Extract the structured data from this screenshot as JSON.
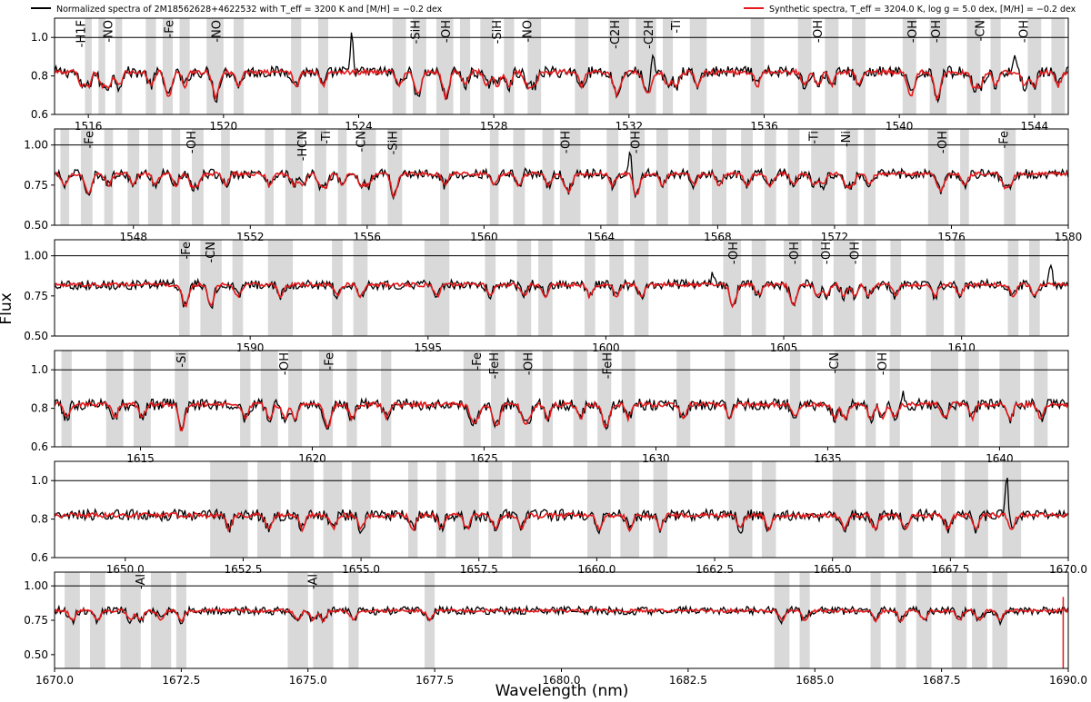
{
  "legend": {
    "observed": "Normalized spectra of 2M18562628+4622532 with T_eff = 3200 K and [M/H] = −0.2 dex",
    "synthetic": "Synthetic spectra, T_eff = 3204.0 K, log g = 5.0 dex, [M/H] = −0.2 dex"
  },
  "colors": {
    "observed": "#000000",
    "synthetic": "#e41a1c",
    "mask": "#d9d9d9"
  },
  "chart_data": {
    "type": "line",
    "xlabel": "Wavelength (nm)",
    "ylabel": "Flux",
    "series": [
      {
        "name": "Normalized spectra of 2M18562628+4622532 with T_eff = 3200 K and [M/H] = −0.2 dex",
        "color": "#000000",
        "baseline": 0.82
      },
      {
        "name": "Synthetic spectra, T_eff = 3204.0 K, log g = 5.0 dex, [M/H] = −0.2 dex",
        "color": "#e41a1c",
        "baseline": 0.82
      }
    ],
    "panels": [
      {
        "xlim": [
          1515,
          1545
        ],
        "ylim": [
          0.6,
          1.1
        ],
        "xticks": [
          1516,
          1520,
          1524,
          1528,
          1532,
          1536,
          1540,
          1544
        ],
        "xtick_labels": [
          "1516",
          "1520",
          "1524",
          "1528",
          "1532",
          "1536",
          "1540",
          "1544"
        ],
        "yticks": [
          0.6,
          0.8,
          1.0
        ],
        "ytick_labels": [
          "0.6",
          "0.8",
          "1.0"
        ],
        "lines": [
          {
            "label": "-H1F",
            "x": 1515.8
          },
          {
            "label": "-NO",
            "x": 1516.6
          },
          {
            "label": "-Fe",
            "x": 1518.4
          },
          {
            "label": "-NO",
            "x": 1519.8
          },
          {
            "label": "-SiH",
            "x": 1525.7
          },
          {
            "label": "-OH",
            "x": 1526.6
          },
          {
            "label": "-SiH",
            "x": 1528.1
          },
          {
            "label": "-NO",
            "x": 1529.0
          },
          {
            "label": "-C2H",
            "x": 1531.6
          },
          {
            "label": "-C2H",
            "x": 1532.6
          },
          {
            "label": "-Ti",
            "x": 1533.4
          },
          {
            "label": "-OH",
            "x": 1537.6
          },
          {
            "label": "-OH",
            "x": 1540.4
          },
          {
            "label": "-OH",
            "x": 1541.1
          },
          {
            "label": "-CN",
            "x": 1542.4
          },
          {
            "label": "-OH",
            "x": 1543.7
          }
        ],
        "spikes": [
          {
            "x": 1523.8,
            "y": 1.01
          },
          {
            "x": 1532.7,
            "y": 0.96
          },
          {
            "x": 1543.4,
            "y": 0.92
          }
        ],
        "mask_bands": [
          [
            1515.9,
            1516.1
          ],
          [
            1516.3,
            1516.5
          ],
          [
            1516.8,
            1517.0
          ],
          [
            1517.7,
            1518.0
          ],
          [
            1518.2,
            1518.5
          ],
          [
            1518.7,
            1519.0
          ],
          [
            1519.5,
            1520.0
          ],
          [
            1520.3,
            1520.6
          ],
          [
            1522.0,
            1522.3
          ],
          [
            1522.8,
            1523.1
          ],
          [
            1525.0,
            1525.4
          ],
          [
            1525.6,
            1526.0
          ],
          [
            1526.3,
            1526.8
          ],
          [
            1527.0,
            1527.3
          ],
          [
            1527.6,
            1528.0
          ],
          [
            1528.3,
            1528.6
          ],
          [
            1529.0,
            1529.4
          ],
          [
            1530.4,
            1530.8
          ],
          [
            1531.4,
            1532.0
          ],
          [
            1532.2,
            1532.8
          ],
          [
            1533.0,
            1533.3
          ],
          [
            1533.8,
            1534.3
          ],
          [
            1535.6,
            1536.0
          ],
          [
            1537.0,
            1537.4
          ],
          [
            1537.8,
            1538.2
          ],
          [
            1538.6,
            1539.0
          ],
          [
            1540.1,
            1540.5
          ],
          [
            1540.9,
            1541.4
          ],
          [
            1542.0,
            1542.4
          ],
          [
            1542.7,
            1543.0
          ],
          [
            1543.8,
            1544.2
          ],
          [
            1544.5,
            1544.9
          ]
        ]
      },
      {
        "xlim": [
          1545.3,
          1580
        ],
        "ylim": [
          0.5,
          1.1
        ],
        "xticks": [
          1548,
          1552,
          1556,
          1560,
          1564,
          1568,
          1572,
          1576,
          1580
        ],
        "xtick_labels": [
          "1548",
          "1552",
          "1556",
          "1560",
          "1564",
          "1568",
          "1572",
          "1576",
          "1580"
        ],
        "yticks": [
          0.5,
          0.75,
          1.0
        ],
        "ytick_labels": [
          "0.50",
          "0.75",
          "1.00"
        ],
        "lines": [
          {
            "label": "-Fe",
            "x": 1546.5
          },
          {
            "label": "-OH",
            "x": 1550.0
          },
          {
            "label": "-HCN",
            "x": 1553.8
          },
          {
            "label": "-Ti",
            "x": 1554.6
          },
          {
            "label": "-CN",
            "x": 1555.8
          },
          {
            "label": "-SiH",
            "x": 1556.9
          },
          {
            "label": "-OH",
            "x": 1562.8
          },
          {
            "label": "-OH",
            "x": 1565.2
          },
          {
            "label": "-Ti",
            "x": 1571.3
          },
          {
            "label": "-Ni",
            "x": 1572.4
          },
          {
            "label": "-OH",
            "x": 1575.7
          },
          {
            "label": "-Fe",
            "x": 1577.8
          }
        ],
        "spikes": [
          {
            "x": 1565.0,
            "y": 0.95
          },
          {
            "x": 1561.4,
            "y": 0.88
          }
        ],
        "mask_bands": [
          [
            1545.5,
            1545.8
          ],
          [
            1546.2,
            1546.6
          ],
          [
            1547.0,
            1547.3
          ],
          [
            1547.8,
            1548.2
          ],
          [
            1548.5,
            1549.0
          ],
          [
            1549.3,
            1549.6
          ],
          [
            1550.0,
            1550.4
          ],
          [
            1551.0,
            1551.3
          ],
          [
            1552.5,
            1552.8
          ],
          [
            1553.2,
            1553.8
          ],
          [
            1554.2,
            1554.6
          ],
          [
            1555.0,
            1555.3
          ],
          [
            1555.8,
            1556.3
          ],
          [
            1556.7,
            1557.2
          ],
          [
            1558.5,
            1558.8
          ],
          [
            1560.2,
            1560.5
          ],
          [
            1561.0,
            1561.4
          ],
          [
            1562.0,
            1562.4
          ],
          [
            1562.6,
            1563.3
          ],
          [
            1564.2,
            1564.6
          ],
          [
            1565.0,
            1565.5
          ],
          [
            1565.9,
            1566.3
          ],
          [
            1567.0,
            1567.4
          ],
          [
            1567.8,
            1568.3
          ],
          [
            1568.8,
            1569.2
          ],
          [
            1569.6,
            1570.0
          ],
          [
            1570.4,
            1570.8
          ],
          [
            1571.2,
            1572.0
          ],
          [
            1572.4,
            1572.8
          ],
          [
            1573.0,
            1573.4
          ],
          [
            1575.2,
            1575.9
          ],
          [
            1576.3,
            1576.6
          ],
          [
            1577.8,
            1578.2
          ]
        ]
      },
      {
        "xlim": [
          1584.5,
          1613
        ],
        "ylim": [
          0.5,
          1.1
        ],
        "xticks": [
          1590,
          1595,
          1600,
          1605,
          1610
        ],
        "xtick_labels": [
          "1590",
          "1595",
          "1600",
          "1605",
          "1610"
        ],
        "yticks": [
          0.5,
          0.75,
          1.0
        ],
        "ytick_labels": [
          "0.50",
          "0.75",
          "1.00"
        ],
        "lines": [
          {
            "label": "-Fe",
            "x": 1588.2
          },
          {
            "label": "-CN",
            "x": 1588.9
          },
          {
            "label": "-OH",
            "x": 1603.6
          },
          {
            "label": "-OH",
            "x": 1605.3
          },
          {
            "label": "-OH",
            "x": 1606.2
          },
          {
            "label": "-OH",
            "x": 1607.0
          }
        ],
        "spikes": [
          {
            "x": 1603.0,
            "y": 0.9
          },
          {
            "x": 1612.5,
            "y": 0.96
          }
        ],
        "mask_bands": [
          [
            1588.0,
            1588.3
          ],
          [
            1588.6,
            1589.2
          ],
          [
            1589.5,
            1589.8
          ],
          [
            1590.5,
            1591.2
          ],
          [
            1592.3,
            1592.6
          ],
          [
            1592.9,
            1593.3
          ],
          [
            1594.9,
            1595.6
          ],
          [
            1596.6,
            1596.9
          ],
          [
            1597.5,
            1597.9
          ],
          [
            1598.1,
            1598.5
          ],
          [
            1599.4,
            1599.7
          ],
          [
            1600.1,
            1600.5
          ],
          [
            1600.8,
            1601.2
          ],
          [
            1603.3,
            1603.8
          ],
          [
            1604.1,
            1604.5
          ],
          [
            1605.0,
            1605.5
          ],
          [
            1605.8,
            1606.1
          ],
          [
            1606.4,
            1607.0
          ],
          [
            1607.2,
            1607.6
          ],
          [
            1608.0,
            1608.3
          ],
          [
            1609.0,
            1609.5
          ],
          [
            1609.8,
            1610.1
          ],
          [
            1611.3,
            1611.6
          ],
          [
            1611.9,
            1612.2
          ]
        ]
      },
      {
        "xlim": [
          1612.5,
          1642
        ],
        "ylim": [
          0.6,
          1.1
        ],
        "xticks": [
          1615,
          1620,
          1625,
          1630,
          1635,
          1640
        ],
        "xtick_labels": [
          "1615",
          "1620",
          "1625",
          "1630",
          "1635",
          "1640"
        ],
        "yticks": [
          0.6,
          0.8,
          1.0
        ],
        "ytick_labels": [
          "0.6",
          "0.8",
          "1.0"
        ],
        "lines": [
          {
            "label": "-Si",
            "x": 1616.2
          },
          {
            "label": "-OH",
            "x": 1619.2
          },
          {
            "label": "-Fe",
            "x": 1620.5
          },
          {
            "label": "-Fe",
            "x": 1624.8
          },
          {
            "label": "-FeH",
            "x": 1625.3
          },
          {
            "label": "-OH",
            "x": 1626.3
          },
          {
            "label": "-FeH",
            "x": 1628.6
          },
          {
            "label": "-CN",
            "x": 1635.2
          },
          {
            "label": "-OH",
            "x": 1636.6
          }
        ],
        "spikes": [
          {
            "x": 1637.2,
            "y": 0.88
          }
        ],
        "mask_bands": [
          [
            1612.7,
            1613.0
          ],
          [
            1614.0,
            1614.5
          ],
          [
            1614.8,
            1615.3
          ],
          [
            1616.0,
            1616.4
          ],
          [
            1617.9,
            1618.2
          ],
          [
            1618.5,
            1619.0
          ],
          [
            1619.3,
            1619.7
          ],
          [
            1620.2,
            1620.6
          ],
          [
            1621.0,
            1621.3
          ],
          [
            1622.0,
            1622.3
          ],
          [
            1624.4,
            1624.9
          ],
          [
            1625.2,
            1625.6
          ],
          [
            1625.9,
            1626.4
          ],
          [
            1626.7,
            1627.0
          ],
          [
            1627.6,
            1628.0
          ],
          [
            1628.3,
            1628.7
          ],
          [
            1629.0,
            1629.4
          ],
          [
            1630.6,
            1631.0
          ],
          [
            1632.0,
            1632.3
          ],
          [
            1633.9,
            1634.2
          ],
          [
            1635.2,
            1635.8
          ],
          [
            1636.1,
            1636.4
          ],
          [
            1636.8,
            1637.1
          ],
          [
            1638.0,
            1638.8
          ],
          [
            1639.0,
            1639.4
          ],
          [
            1640.0,
            1640.6
          ],
          [
            1641.0,
            1641.4
          ]
        ]
      },
      {
        "xlim": [
          1648.5,
          1670
        ],
        "ylim": [
          0.6,
          1.1
        ],
        "xticks": [
          1650.0,
          1652.5,
          1655.0,
          1657.5,
          1660.0,
          1662.5,
          1665.0,
          1667.5,
          1670.0
        ],
        "xtick_labels": [
          "1650.0",
          "1652.5",
          "1655.0",
          "1657.5",
          "1660.0",
          "1662.5",
          "1665.0",
          "1667.5",
          "1670.0"
        ],
        "yticks": [
          0.6,
          0.8,
          1.0
        ],
        "ytick_labels": [
          "0.6",
          "0.8",
          "1.0"
        ],
        "lines": [],
        "spikes": [
          {
            "x": 1668.7,
            "y": 1.02
          }
        ],
        "mask_bands": [
          [
            1651.8,
            1652.6
          ],
          [
            1652.8,
            1653.3
          ],
          [
            1653.5,
            1654.0
          ],
          [
            1654.2,
            1654.6
          ],
          [
            1654.8,
            1655.2
          ],
          [
            1656.0,
            1656.2
          ],
          [
            1656.6,
            1656.8
          ],
          [
            1657.0,
            1657.5
          ],
          [
            1657.7,
            1658.0
          ],
          [
            1658.2,
            1658.6
          ],
          [
            1659.8,
            1660.3
          ],
          [
            1660.5,
            1660.9
          ],
          [
            1661.2,
            1661.5
          ],
          [
            1662.8,
            1663.3
          ],
          [
            1663.5,
            1663.8
          ],
          [
            1665.0,
            1665.5
          ],
          [
            1665.7,
            1666.1
          ],
          [
            1666.4,
            1666.7
          ],
          [
            1667.3,
            1667.6
          ],
          [
            1667.8,
            1668.3
          ],
          [
            1668.6,
            1669.0
          ]
        ]
      },
      {
        "xlim": [
          1670,
          1690
        ],
        "ylim": [
          0.4,
          1.1
        ],
        "xticks": [
          1670.0,
          1672.5,
          1675.0,
          1677.5,
          1680.0,
          1682.5,
          1685.0,
          1687.5,
          1690.0
        ],
        "xtick_labels": [
          "1670.0",
          "1672.5",
          "1675.0",
          "1677.5",
          "1680.0",
          "1682.5",
          "1685.0",
          "1687.5",
          "1690.0"
        ],
        "yticks": [
          0.5,
          0.75,
          1.0
        ],
        "ytick_labels": [
          "0.50",
          "0.75",
          "1.00"
        ],
        "lines": [
          {
            "label": "-Al",
            "x": 1671.7
          },
          {
            "label": "-Al",
            "x": 1675.1
          }
        ],
        "spikes": [],
        "mask_bands": [
          [
            1670.2,
            1670.5
          ],
          [
            1670.7,
            1671.0
          ],
          [
            1671.3,
            1671.7
          ],
          [
            1671.9,
            1672.3
          ],
          [
            1672.4,
            1672.6
          ],
          [
            1674.6,
            1675.0
          ],
          [
            1675.1,
            1675.5
          ],
          [
            1675.8,
            1676.0
          ],
          [
            1677.3,
            1677.5
          ],
          [
            1684.2,
            1684.5
          ],
          [
            1684.7,
            1684.9
          ],
          [
            1686.1,
            1686.3
          ],
          [
            1686.6,
            1686.8
          ],
          [
            1687.0,
            1687.3
          ],
          [
            1687.7,
            1688.0
          ],
          [
            1688.1,
            1688.4
          ],
          [
            1688.5,
            1688.8
          ]
        ]
      }
    ]
  }
}
